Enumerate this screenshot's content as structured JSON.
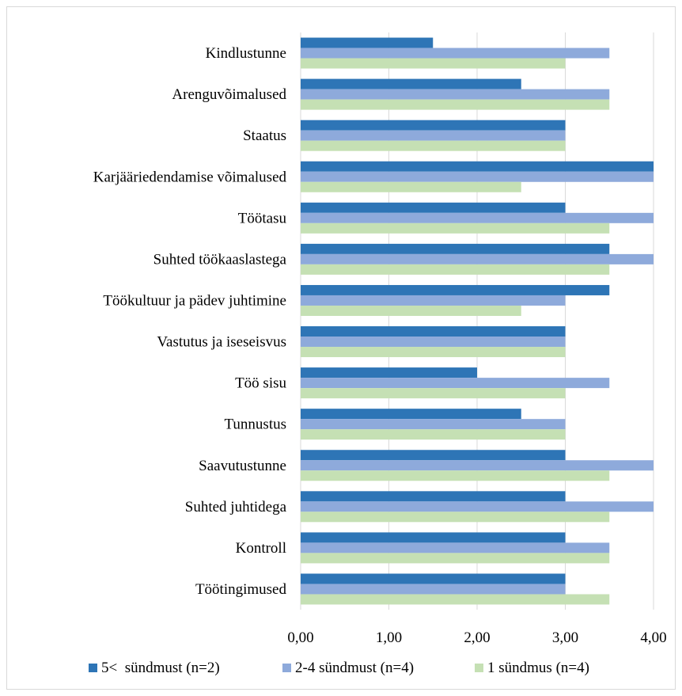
{
  "chart_data": {
    "type": "bar",
    "orientation": "horizontal",
    "categories": [
      "Kindlustunne",
      "Arenguvõimalused",
      "Staatus",
      "Karjääriedendamise võimalused",
      "Töötasu",
      "Suhted töökaaslastega",
      "Töökultuur ja pädev juhtimine",
      "Vastutus ja iseseisvus",
      "Töö sisu",
      "Tunnustus",
      "Saavutustunne",
      "Suhted juhtidega",
      "Kontroll",
      "Töötingimused"
    ],
    "series": [
      {
        "name": "5<  sündmust (n=2)",
        "color": "#2e75b6",
        "values": [
          1.5,
          2.5,
          3.0,
          4.0,
          3.0,
          3.5,
          3.5,
          3.0,
          2.0,
          2.5,
          3.0,
          3.0,
          3.0,
          3.0
        ]
      },
      {
        "name": "2-4 sündmust (n=4)",
        "color": "#8eaadb",
        "values": [
          3.5,
          3.5,
          3.0,
          4.0,
          4.0,
          4.0,
          3.0,
          3.0,
          3.5,
          3.0,
          4.0,
          4.0,
          3.5,
          3.0
        ]
      },
      {
        "name": "1 sündmus (n=4)",
        "color": "#c5e0b4",
        "values": [
          3.0,
          3.5,
          3.0,
          2.5,
          3.5,
          3.5,
          2.5,
          3.0,
          3.0,
          3.0,
          3.5,
          3.5,
          3.5,
          3.5
        ]
      }
    ],
    "xlim": [
      0,
      4
    ],
    "xticks": [
      "0,00",
      "1,00",
      "2,00",
      "3,00",
      "4,00"
    ],
    "xtick_values": [
      0,
      1,
      2,
      3,
      4
    ],
    "grid": true,
    "legend_position": "bottom"
  }
}
